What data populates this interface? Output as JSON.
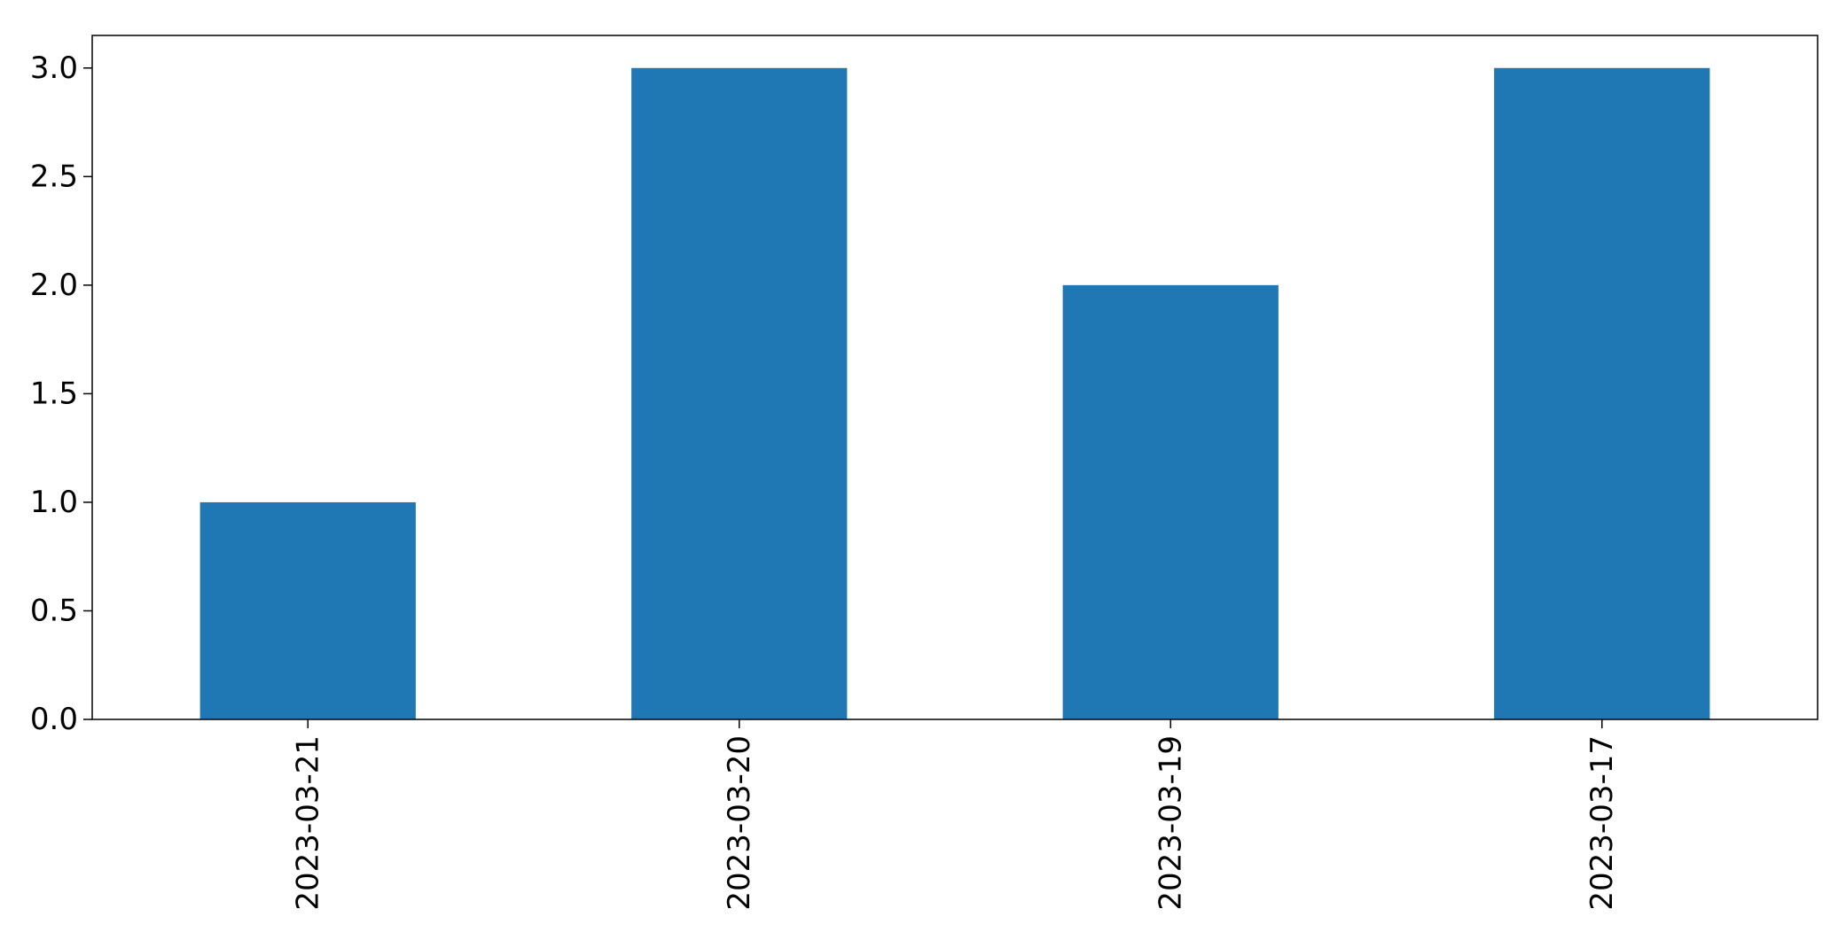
{
  "chart_data": {
    "type": "bar",
    "categories": [
      "2023-03-21",
      "2023-03-20",
      "2023-03-19",
      "2023-03-17"
    ],
    "values": [
      1,
      3,
      2,
      3
    ],
    "title": "",
    "xlabel": "",
    "ylabel": "",
    "ylim": [
      0,
      3.15
    ],
    "yticks": [
      "0.0",
      "0.5",
      "1.0",
      "1.5",
      "2.0",
      "2.5",
      "3.0"
    ],
    "x_tick_rotation": "vertical",
    "bar_color": "#1f77b4",
    "grid": false,
    "legend": "none"
  }
}
